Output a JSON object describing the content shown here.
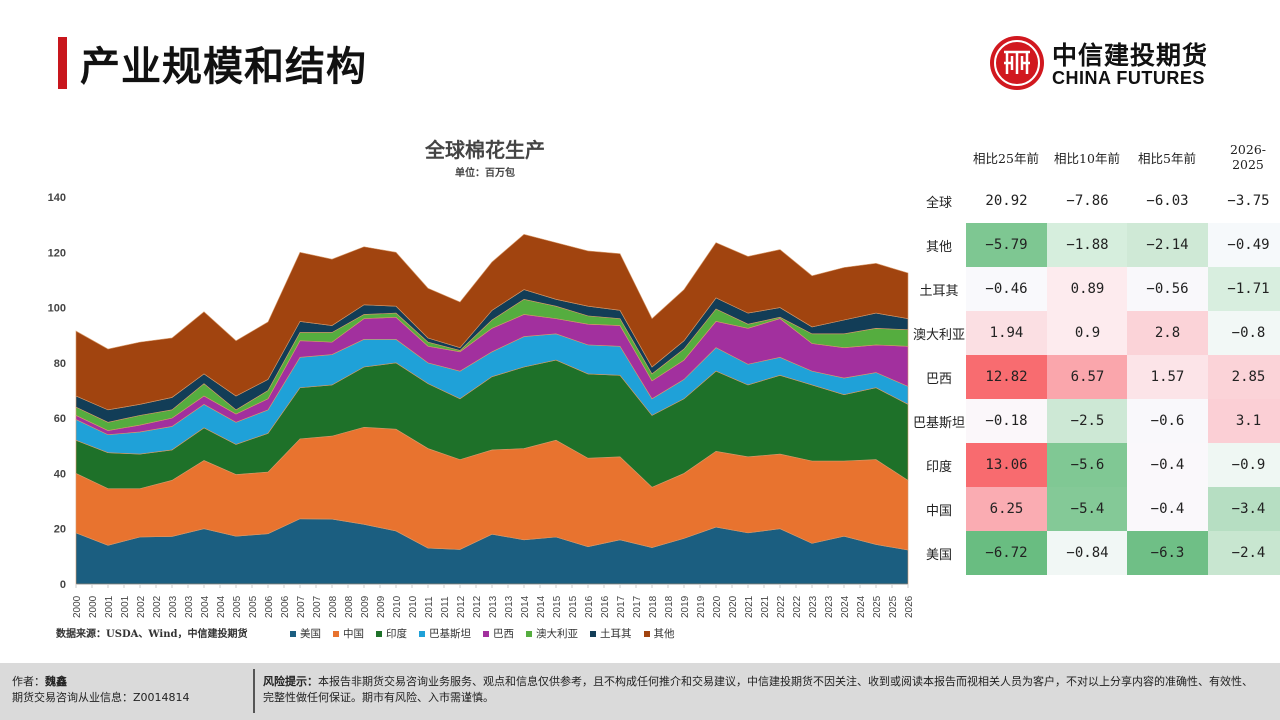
{
  "page": {
    "title": "产业规模和结构",
    "logo": {
      "cn": "中信建投期货",
      "en": "CHINA FUTURES",
      "icon": "citic-logo-icon"
    }
  },
  "chart_data": {
    "type": "area",
    "stacked": true,
    "title": "全球棉花生产",
    "subtitle": "单位：百万包",
    "xlabel": "",
    "ylabel": "",
    "ylim": [
      0,
      140
    ],
    "yticks": [
      0,
      20,
      40,
      60,
      80,
      100,
      120,
      140
    ],
    "grid": false,
    "legend_position": "bottom",
    "x": [
      "2000",
      "2001",
      "2002",
      "2003",
      "2004",
      "2005",
      "2006",
      "2007",
      "2008",
      "2009",
      "2010",
      "2011",
      "2012",
      "2013",
      "2014",
      "2015",
      "2016",
      "2017",
      "2018",
      "2019",
      "2020",
      "2021",
      "2022",
      "2023",
      "2024",
      "2025",
      "2026"
    ],
    "xtick_labels": [
      "2000",
      "2000",
      "2001",
      "2001",
      "2002",
      "2002",
      "2003",
      "2003",
      "2004",
      "2004",
      "2005",
      "2005",
      "2006",
      "2006",
      "2007",
      "2007",
      "2008",
      "2008",
      "2009",
      "2009",
      "2010",
      "2010",
      "2011",
      "2011",
      "2012",
      "2012",
      "2013",
      "2013",
      "2014",
      "2014",
      "2015",
      "2015",
      "2016",
      "2016",
      "2017",
      "2017",
      "2018",
      "2018",
      "2019",
      "2019",
      "2020",
      "2020",
      "2021",
      "2021",
      "2022",
      "2022",
      "2023",
      "2023",
      "2024",
      "2024",
      "2025",
      "2025",
      "2026"
    ],
    "series": [
      {
        "name": "美国",
        "color": "#1b5e80",
        "values": [
          18.5,
          14.0,
          17.0,
          17.2,
          20.0,
          17.3,
          18.2,
          23.6,
          23.5,
          21.6,
          19.2,
          13.0,
          12.5,
          18.0,
          16.0,
          17.0,
          13.5,
          16.0,
          13.2,
          16.5,
          20.6,
          18.5,
          20.0,
          14.7,
          17.3,
          14.3,
          12.3
        ]
      },
      {
        "name": "中国",
        "color": "#e8732f",
        "values": [
          21.5,
          20.5,
          17.5,
          20.3,
          24.7,
          22.3,
          22.3,
          28.9,
          30.0,
          35.1,
          36.8,
          36.0,
          32.5,
          30.5,
          33.0,
          35.0,
          32.0,
          30.0,
          21.8,
          23.5,
          27.4,
          27.5,
          27.0,
          29.8,
          27.2,
          30.7,
          25.2
        ]
      },
      {
        "name": "印度",
        "color": "#1e7129",
        "values": [
          12.0,
          13.0,
          12.5,
          11.0,
          11.8,
          10.9,
          14.0,
          18.5,
          18.5,
          21.8,
          24.0,
          23.5,
          22.0,
          26.5,
          29.5,
          29.0,
          30.5,
          29.5,
          26.0,
          27.0,
          29.0,
          26.0,
          28.5,
          27.5,
          24.0,
          26.0,
          27.5
        ]
      },
      {
        "name": "巴基斯坦",
        "color": "#1fa1d8",
        "values": [
          7.5,
          6.5,
          8.0,
          8.5,
          8.5,
          8.0,
          8.5,
          11.0,
          11.0,
          10.0,
          8.5,
          7.5,
          10.0,
          9.0,
          11.0,
          9.5,
          10.5,
          10.5,
          6.0,
          7.0,
          8.5,
          7.5,
          6.5,
          5.0,
          6.0,
          5.5,
          6.5
        ]
      },
      {
        "name": "巴西",
        "color": "#a2309e",
        "values": [
          1.5,
          1.5,
          2.5,
          3.0,
          3.0,
          3.0,
          4.0,
          6.0,
          4.5,
          7.5,
          8.0,
          6.0,
          7.0,
          8.5,
          8.0,
          5.5,
          7.5,
          7.5,
          6.5,
          7.0,
          9.5,
          13.0,
          14.0,
          10.0,
          11.0,
          10.0,
          14.5
        ]
      },
      {
        "name": "澳大利亚",
        "color": "#55ad3f",
        "values": [
          3.0,
          3.0,
          3.5,
          3.0,
          4.5,
          1.5,
          3.0,
          3.0,
          3.5,
          1.5,
          1.5,
          1.5,
          0.5,
          3.0,
          5.5,
          4.5,
          3.0,
          2.5,
          2.5,
          4.0,
          4.5,
          1.5,
          0.5,
          3.5,
          5.0,
          6.0,
          6.0
        ]
      },
      {
        "name": "土耳其",
        "color": "#123d57",
        "values": [
          4.0,
          4.5,
          4.0,
          4.5,
          3.5,
          5.0,
          4.0,
          4.0,
          2.5,
          3.5,
          2.5,
          1.5,
          1.0,
          3.5,
          3.5,
          2.5,
          3.5,
          3.0,
          2.5,
          3.0,
          4.0,
          4.0,
          3.5,
          2.5,
          5.0,
          5.5,
          4.0
        ]
      },
      {
        "name": "其他",
        "color": "#a1440f",
        "values": [
          23.5,
          22.0,
          22.5,
          21.5,
          22.5,
          20.0,
          20.8,
          25.0,
          24.0,
          21.0,
          19.5,
          18.0,
          16.5,
          17.5,
          20.0,
          20.5,
          20.0,
          20.5,
          17.5,
          18.5,
          20.0,
          20.5,
          21.0,
          18.5,
          19.0,
          18.0,
          16.5
        ]
      }
    ]
  },
  "source": "数据来源：USDA、Wind，中信建投期货",
  "table": {
    "columns": [
      "相比25年前",
      "相比10年前",
      "相比5年前",
      "2026-\n2025"
    ],
    "rows": [
      {
        "label": "全球",
        "values": [
          "20.92",
          "-7.86",
          "-6.03",
          "-3.75"
        ],
        "colors": [
          "#ffffff",
          "#ffffff",
          "#ffffff",
          "#ffffff"
        ]
      },
      {
        "label": "其他",
        "values": [
          "-5.79",
          "-1.88",
          "-2.14",
          "-0.49"
        ],
        "colors": [
          "#7ec792",
          "#d6eedd",
          "#cfe9d6",
          "#f6f9fb"
        ]
      },
      {
        "label": "土耳其",
        "values": [
          "-0.46",
          "0.89",
          "-0.56",
          "-1.71"
        ],
        "colors": [
          "#f9f9fc",
          "#fdebee",
          "#f9f8fb",
          "#d8eedf"
        ]
      },
      {
        "label": "澳大利亚",
        "values": [
          "1.94",
          "0.9",
          "2.8",
          "-0.8"
        ],
        "colors": [
          "#fbdfe3",
          "#fdebee",
          "#fbd3d8",
          "#f2f8f6"
        ]
      },
      {
        "label": "巴西",
        "values": [
          "12.82",
          "6.57",
          "1.57",
          "2.85"
        ],
        "colors": [
          "#f86c70",
          "#faa6ac",
          "#fce4e8",
          "#fbd3d8"
        ]
      },
      {
        "label": "巴基斯坦",
        "values": [
          "-0.18",
          "-2.5",
          "-0.6",
          "3.1"
        ],
        "colors": [
          "#fbf7fa",
          "#cde8d5",
          "#f9f8fb",
          "#fbcfd5"
        ]
      },
      {
        "label": "印度",
        "values": [
          "13.06",
          "-5.6",
          "-0.4",
          "-0.9"
        ],
        "colors": [
          "#f86b6f",
          "#80c894",
          "#faf8fb",
          "#eff7f3"
        ]
      },
      {
        "label": "中国",
        "values": [
          "6.25",
          "-5.4",
          "-0.4",
          "-3.4"
        ],
        "colors": [
          "#faacb2",
          "#84c997",
          "#faf8fb",
          "#b6dec2"
        ]
      },
      {
        "label": "美国",
        "values": [
          "-6.72",
          "-0.84",
          "-6.3",
          "-2.4"
        ],
        "colors": [
          "#69bd81",
          "#f1f7f5",
          "#6fbf86",
          "#c8e6d0"
        ]
      }
    ]
  },
  "footer": {
    "author_label": "作者：",
    "author": "魏鑫",
    "license_label": "期货交易咨询从业信息：",
    "license": "Z0014814",
    "risk_label": "风险提示：",
    "risk_text": "本报告非期货交易咨询业务服务、观点和信息仅供参考，且不构成任何推介和交易建议，中信建投期货不因关注、收到或阅读本报告而视相关人员为客户，不对以上分享内容的准确性、有效性、完整性做任何保证。期市有风险、入市需谨慎。"
  }
}
